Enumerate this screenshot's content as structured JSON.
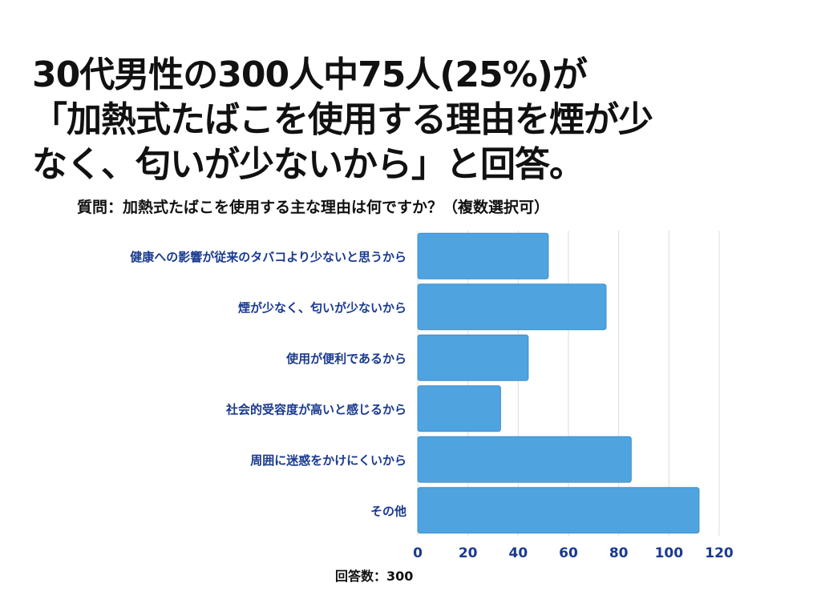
{
  "headline": {
    "lines": [
      "30代男性の300人中75人(25%)が",
      "「加熱式たばこを使用する理由を煙が少",
      "なく、匂いが少ないから」と回答。"
    ]
  },
  "question": "質問：加熱式たばこを使用する主な理由は何ですか？（複数選択可）",
  "footer_note": "回答数：300",
  "colors": {
    "bar": "#4fa3df",
    "bar_stroke": "#3c8fcf",
    "label": "#1a3a8f",
    "grid": "#d9dde3"
  },
  "chart_data": {
    "type": "bar",
    "orientation": "horizontal",
    "categories": [
      "健康への影響が従来のタバコより少ないと思うから",
      "煙が少なく、匂いが少ないから",
      "使用が便利であるから",
      "社会的受容度が高いと感じるから",
      "周囲に迷惑をかけにくいから",
      "その他"
    ],
    "values": [
      52,
      75,
      44,
      33,
      85,
      112
    ],
    "xlim": [
      0,
      120
    ],
    "xticks": [
      0,
      20,
      40,
      60,
      80,
      100,
      120
    ],
    "grid": true,
    "legend": "none"
  }
}
